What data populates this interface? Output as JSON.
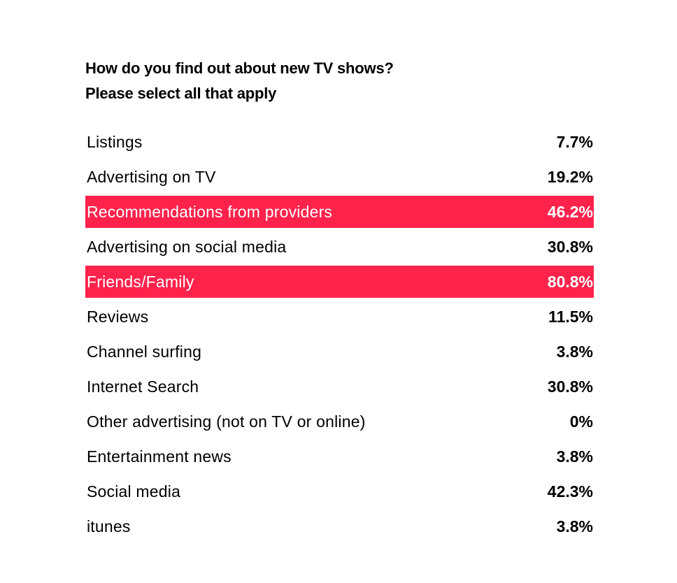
{
  "colors": {
    "highlight": "#ff234c",
    "text": "#000000",
    "highlight_text": "#ffffff",
    "background": "#ffffff"
  },
  "chart_data": {
    "type": "table",
    "title": "How do you find out about new TV shows?",
    "subtitle": "Please select all that apply",
    "rows": [
      {
        "label": "Listings",
        "display": "7.7%",
        "value": 7.7,
        "highlighted": false
      },
      {
        "label": "Advertising on TV",
        "display": "19.2%",
        "value": 19.2,
        "highlighted": false
      },
      {
        "label": "Recommendations from providers",
        "display": "46.2%",
        "value": 46.2,
        "highlighted": true
      },
      {
        "label": "Advertising on social media",
        "display": "30.8%",
        "value": 30.8,
        "highlighted": false
      },
      {
        "label": "Friends/Family",
        "display": "80.8%",
        "value": 80.8,
        "highlighted": true
      },
      {
        "label": "Reviews",
        "display": "11.5%",
        "value": 11.5,
        "highlighted": false
      },
      {
        "label": "Channel surfing",
        "display": "3.8%",
        "value": 3.8,
        "highlighted": false
      },
      {
        "label": "Internet Search",
        "display": "30.8%",
        "value": 30.8,
        "highlighted": false
      },
      {
        "label": "Other advertising (not on TV or online)",
        "display": "0%",
        "value": 0,
        "highlighted": false
      },
      {
        "label": "Entertainment news",
        "display": "3.8%",
        "value": 3.8,
        "highlighted": false
      },
      {
        "label": "Social media",
        "display": "42.3%",
        "value": 42.3,
        "highlighted": false
      },
      {
        "label": "itunes",
        "display": "3.8%",
        "value": 3.8,
        "highlighted": false
      }
    ]
  }
}
